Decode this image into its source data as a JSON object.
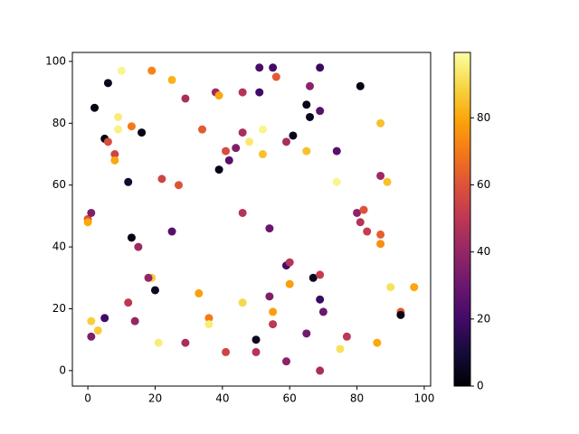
{
  "chart_data": {
    "type": "scatter",
    "colormap": "inferno",
    "x": [
      0,
      0,
      1,
      1,
      1,
      2,
      3,
      5,
      6,
      6,
      5,
      8,
      8,
      9,
      9,
      10,
      12,
      13,
      13,
      12,
      14,
      15,
      16,
      19,
      19,
      18,
      20,
      21,
      22,
      25,
      25,
      27,
      29,
      29,
      33,
      34,
      36,
      36,
      38,
      39,
      39,
      41,
      41,
      42,
      44,
      46,
      46,
      46,
      46,
      48,
      50,
      50,
      51,
      51,
      52,
      52,
      54,
      54,
      55,
      55,
      55,
      56,
      59,
      59,
      60,
      60,
      59,
      61,
      65,
      65,
      65,
      66,
      66,
      67,
      69,
      69,
      69,
      69,
      69,
      70,
      74,
      74,
      75,
      77,
      80,
      81,
      81,
      82,
      83,
      86,
      87,
      87,
      87,
      87,
      89,
      90,
      93,
      93,
      97
    ],
    "y": [
      49,
      48,
      51,
      16,
      11,
      85,
      13,
      75,
      74,
      93,
      17,
      70,
      68,
      82,
      78,
      97,
      61,
      79,
      43,
      22,
      16,
      40,
      77,
      97,
      30,
      30,
      26,
      9,
      62,
      94,
      45,
      60,
      88,
      9,
      25,
      78,
      17,
      15,
      90,
      89,
      65,
      71,
      6,
      68,
      72,
      90,
      77,
      51,
      22,
      74,
      10,
      6,
      98,
      90,
      78,
      70,
      46,
      24,
      98,
      19,
      15,
      95,
      74,
      34,
      35,
      28,
      3,
      76,
      86,
      71,
      12,
      92,
      82,
      30,
      98,
      84,
      31,
      23,
      0,
      19,
      71,
      61,
      7,
      11,
      51,
      92,
      48,
      52,
      45,
      9,
      80,
      63,
      44,
      41,
      61,
      27,
      19,
      18,
      27
    ],
    "c": [
      60,
      80,
      35,
      88,
      35,
      3,
      87,
      2,
      58,
      5,
      20,
      55,
      80,
      95,
      96,
      97,
      8,
      70,
      3,
      50,
      40,
      43,
      4,
      72,
      88,
      40,
      6,
      95,
      55,
      82,
      25,
      60,
      45,
      45,
      78,
      62,
      70,
      95,
      42,
      80,
      4,
      58,
      55,
      25,
      35,
      48,
      45,
      48,
      90,
      94,
      6,
      48,
      22,
      20,
      97,
      85,
      30,
      35,
      20,
      78,
      50,
      62,
      45,
      20,
      48,
      78,
      38,
      5,
      3,
      85,
      32,
      38,
      5,
      6,
      18,
      25,
      52,
      18,
      45,
      30,
      25,
      97,
      92,
      50,
      38,
      2,
      48,
      60,
      52,
      80,
      85,
      42,
      63,
      75,
      85,
      92,
      62,
      3,
      80
    ],
    "xlim": [
      -4.6,
      101.9
    ],
    "ylim": [
      -5,
      102.9
    ],
    "clim": [
      0,
      99.5
    ],
    "xticks": [
      0,
      20,
      40,
      60,
      80,
      100
    ],
    "yticks": [
      0,
      20,
      40,
      60,
      80,
      100
    ],
    "cticks": [
      0,
      20,
      40,
      60,
      80
    ]
  }
}
